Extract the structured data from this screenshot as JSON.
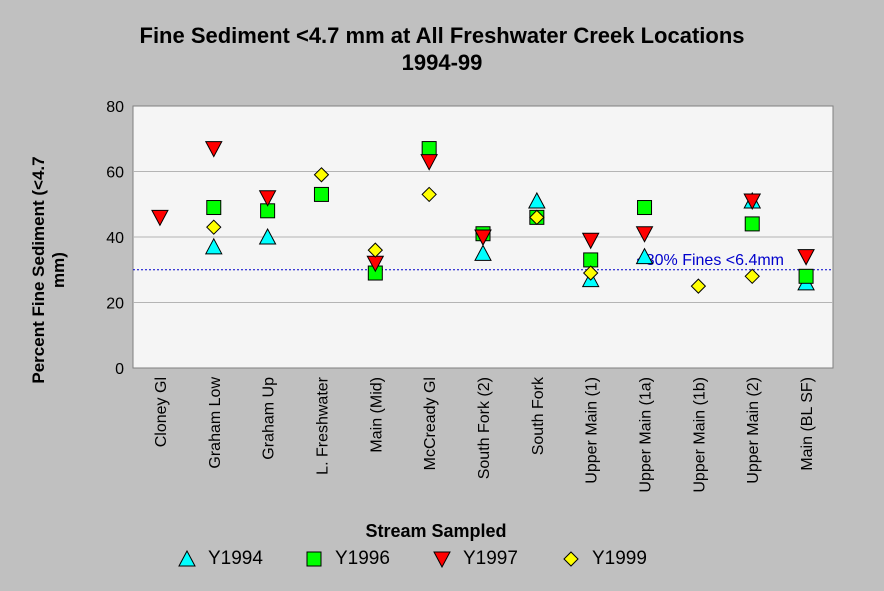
{
  "chart_data": {
    "type": "scatter",
    "title": "Fine Sediment <4.7 mm at All Freshwater Creek Locations",
    "subtitle": "1994-99",
    "xlabel": "Stream Sampled",
    "ylabel": "Percent Fine Sediment (<4.7 mm)",
    "ylim": [
      0,
      80
    ],
    "yticks": [
      0,
      20,
      40,
      60,
      80
    ],
    "grid": true,
    "legend_position": "bottom",
    "categories": [
      "Cloney Gl",
      "Graham Low",
      "Graham Up",
      "L. Freshwater",
      "Main (Mid)",
      "McCready Gl",
      "South Fork (2)",
      "South Fork",
      "Upper Main (1)",
      "Upper Main (1a)",
      "Upper Main (1b)",
      "Upper Main (2)",
      "Main (BL SF)"
    ],
    "series": [
      {
        "name": "Y1994",
        "marker": "triangle-up",
        "color": "#00ffff",
        "values": [
          null,
          37,
          40,
          null,
          null,
          null,
          35,
          51,
          27,
          34,
          null,
          51,
          26
        ]
      },
      {
        "name": "Y1996",
        "marker": "square",
        "color": "#00ff00",
        "values": [
          null,
          49,
          48,
          53,
          29,
          67,
          41,
          46,
          33,
          49,
          null,
          44,
          28
        ]
      },
      {
        "name": "Y1997",
        "marker": "triangle-down",
        "color": "#ff0000",
        "values": [
          46,
          67,
          52,
          null,
          32,
          63,
          40,
          null,
          39,
          41,
          null,
          51,
          34
        ]
      },
      {
        "name": "Y1999",
        "marker": "diamond",
        "color": "#ffff00",
        "values": [
          null,
          43,
          null,
          59,
          36,
          53,
          null,
          46,
          29,
          null,
          25,
          28,
          null
        ]
      }
    ],
    "reference_line": {
      "value": 30,
      "label": "<30% Fines <6.4mm",
      "color": "#0000cc"
    }
  }
}
